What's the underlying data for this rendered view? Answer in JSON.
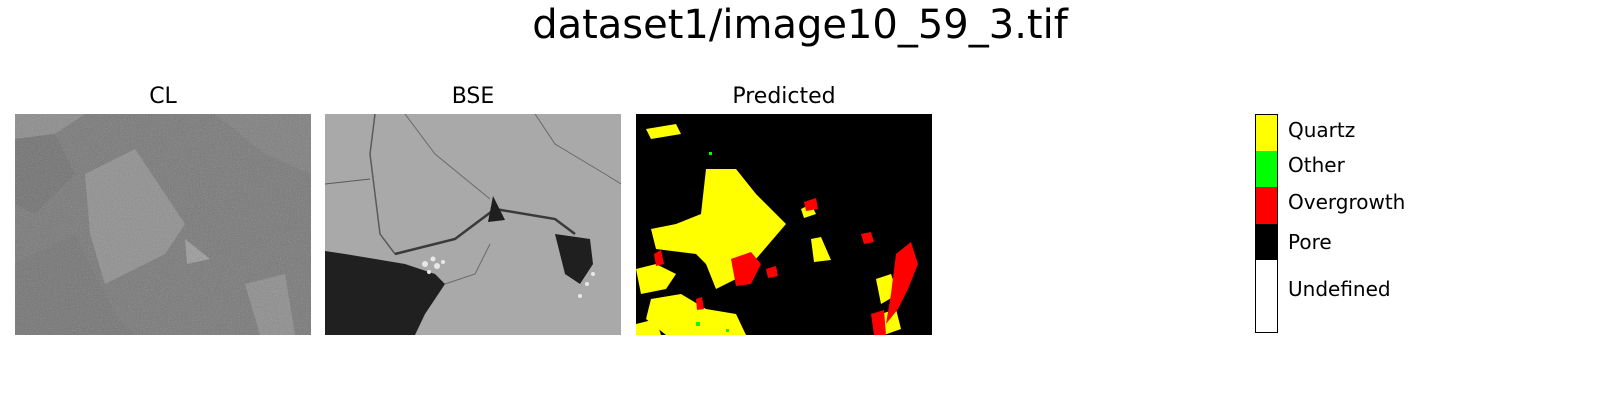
{
  "figure": {
    "title": "dataset1/image10_59_3.tif"
  },
  "panels": [
    {
      "title": "CL",
      "icon": "cathodoluminescence-image"
    },
    {
      "title": "BSE",
      "icon": "backscattered-electron-image"
    },
    {
      "title": "Predicted",
      "icon": "predicted-segmentation-map"
    }
  ],
  "legend": {
    "items": [
      {
        "label": "Quartz",
        "color": "#ffff00"
      },
      {
        "label": "Other",
        "color": "#00ff00"
      },
      {
        "label": "Overgrowth",
        "color": "#ff0000"
      },
      {
        "label": "Pore",
        "color": "#000000"
      },
      {
        "label": "Undefined",
        "color": "#ffffff"
      }
    ]
  }
}
